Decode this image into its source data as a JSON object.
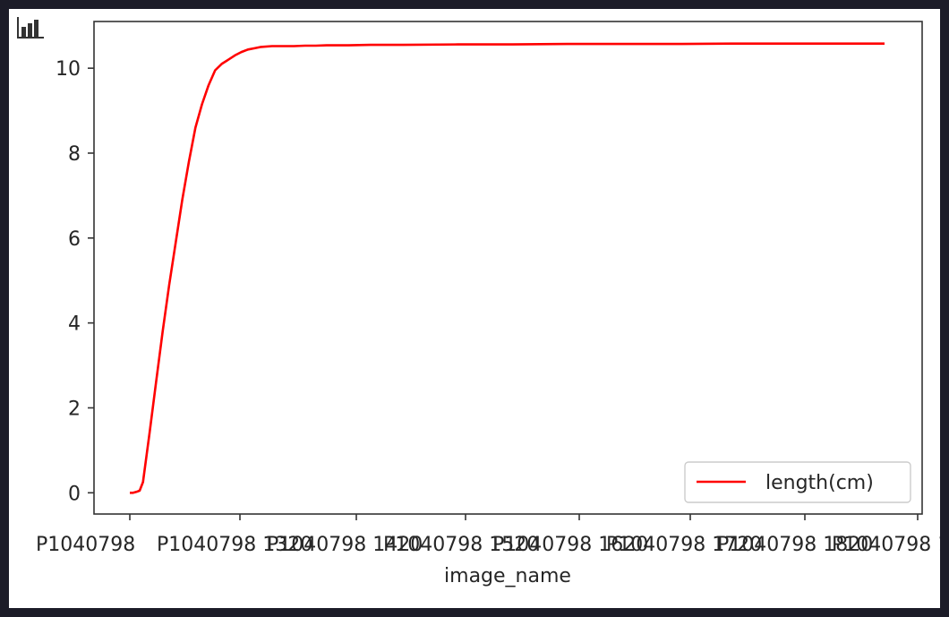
{
  "chart_data": {
    "type": "line",
    "xlabel": "image_name",
    "ylabel": "",
    "ylim": [
      -0.5,
      11.1
    ],
    "y_ticks": [
      0,
      2,
      4,
      6,
      8,
      10
    ],
    "x_tick_labels": [
      "P1040798 1320",
      "P1040798 1420",
      "P1040798 1520",
      "P1040798 1620",
      "P1040798 1720",
      "P1040798 1820",
      "P1040798 1920"
    ],
    "legend_position": "lower-right",
    "grid": false,
    "series": [
      {
        "name": "length(cm)",
        "color": "#ff0000",
        "x": [
          0,
          3,
          6,
          9,
          12,
          18,
          24,
          30,
          36,
          42,
          48,
          54,
          60,
          66,
          72,
          78,
          84,
          90,
          96,
          102,
          108,
          114,
          120,
          130,
          140,
          150,
          160,
          170,
          180,
          200,
          220,
          250,
          300,
          350,
          400,
          450,
          500,
          550,
          600,
          650,
          690
        ],
        "y": [
          0.0,
          0.0,
          0.02,
          0.05,
          0.25,
          1.4,
          2.6,
          3.8,
          4.9,
          5.9,
          6.9,
          7.8,
          8.6,
          9.15,
          9.6,
          9.95,
          10.1,
          10.2,
          10.3,
          10.38,
          10.44,
          10.47,
          10.5,
          10.52,
          10.52,
          10.52,
          10.53,
          10.53,
          10.54,
          10.54,
          10.55,
          10.55,
          10.56,
          10.56,
          10.57,
          10.57,
          10.57,
          10.58,
          10.58,
          10.58,
          10.58
        ]
      }
    ]
  }
}
